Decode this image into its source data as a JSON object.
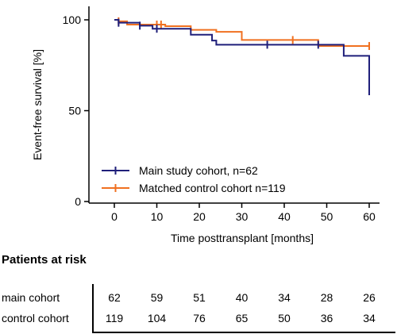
{
  "chart_data": {
    "type": "line",
    "step": true,
    "xlabel": "Time posttransplant [months]",
    "ylabel": "Event-free survival [%]",
    "xlim": [
      -2,
      62
    ],
    "ylim": [
      0,
      103
    ],
    "xticks": [
      0,
      10,
      20,
      30,
      40,
      50,
      60
    ],
    "yticks": [
      0,
      50,
      100
    ],
    "grid": false,
    "legend_position": "bottom-left",
    "series": [
      {
        "name": "Main study cohort, n=62",
        "color": "#1f1f7a",
        "x": [
          0,
          1,
          6,
          9,
          18,
          23,
          24,
          48,
          54,
          60,
          60
        ],
        "y": [
          100,
          98.4,
          96.8,
          95.1,
          91.8,
          88.6,
          86.3,
          86.3,
          80.2,
          80.2,
          58.5
        ],
        "censor_x": [
          1,
          6,
          10,
          36,
          48
        ]
      },
      {
        "name": "Matched control cohort n=119",
        "color": "#f07020",
        "x": [
          0,
          1,
          3,
          12,
          18,
          24,
          30,
          48,
          60
        ],
        "y": [
          100,
          99.2,
          97.4,
          96.5,
          94.5,
          93.4,
          88.9,
          85.6,
          85.6
        ],
        "censor_x": [
          1,
          10,
          11,
          42,
          60
        ]
      }
    ]
  },
  "risk_table": {
    "title": "Patients at risk",
    "timepoints": [
      0,
      10,
      20,
      30,
      40,
      50,
      60
    ],
    "rows": [
      {
        "label": "main cohort",
        "values": [
          "62",
          "59",
          "51",
          "40",
          "34",
          "28",
          "26"
        ]
      },
      {
        "label": "control cohort",
        "values": [
          "119",
          "104",
          "76",
          "65",
          "50",
          "36",
          "34"
        ]
      }
    ]
  }
}
